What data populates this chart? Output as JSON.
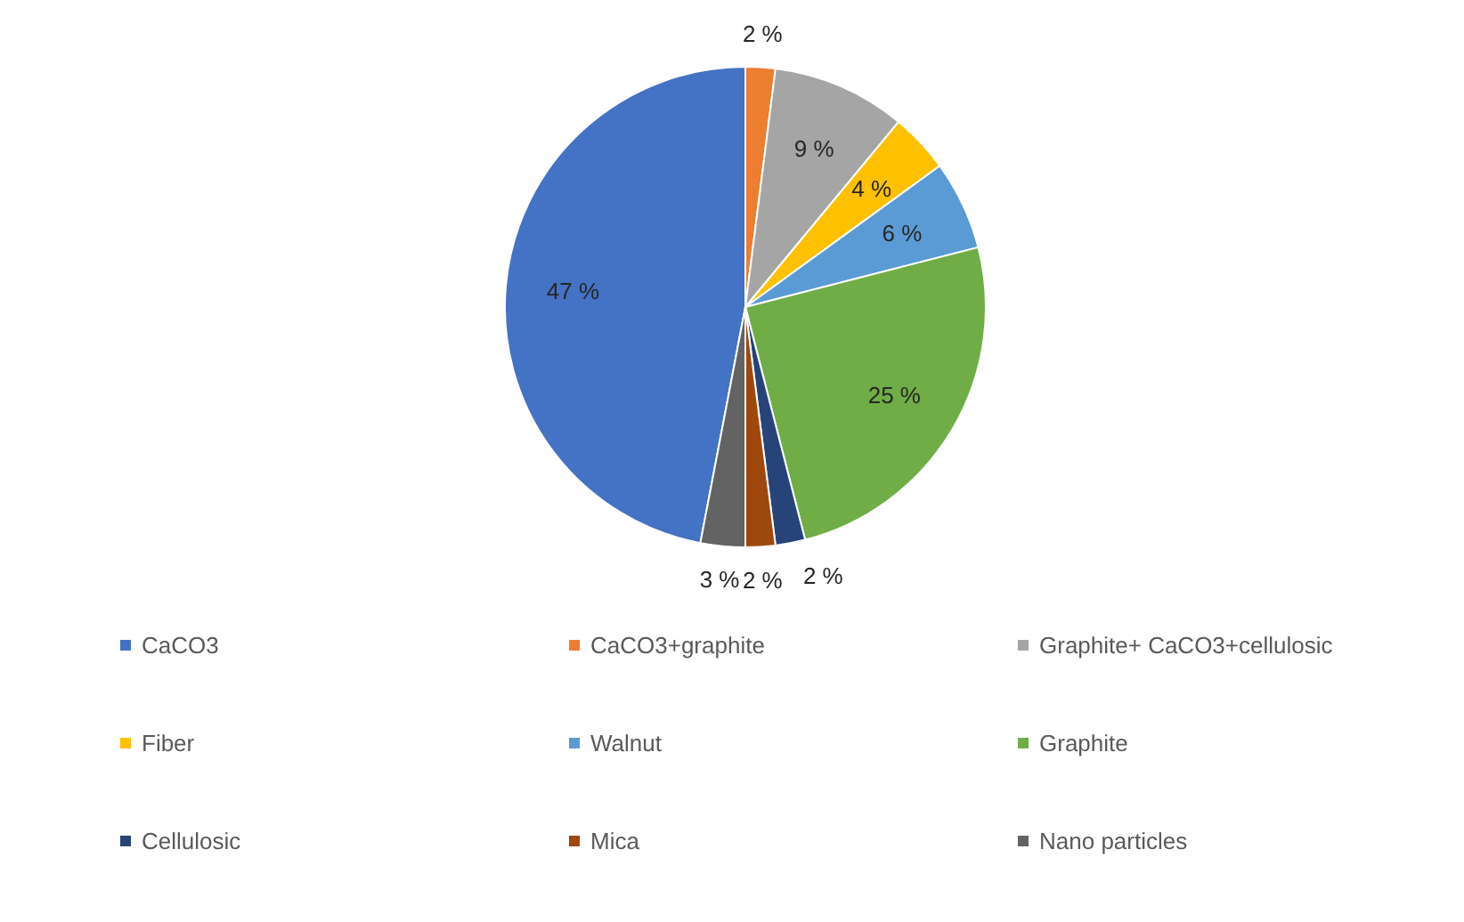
{
  "chart_data": {
    "type": "pie",
    "categories": [
      "CaCO3",
      "CaCO3+graphite",
      "Graphite+ CaCO3+cellulosic",
      "Fiber",
      "Walnut",
      "Graphite",
      "Cellulosic",
      "Mica",
      "Nano particles"
    ],
    "values": [
      47,
      2,
      9,
      4,
      6,
      25,
      2,
      2,
      3
    ],
    "colors": [
      "#4472c4",
      "#ed7d31",
      "#a5a5a5",
      "#ffc000",
      "#5b9bd5",
      "#70ad47",
      "#264478",
      "#9e480e",
      "#636363"
    ],
    "value_labels": [
      "47 %",
      "2 %",
      "9 %",
      "4 %",
      "6 %",
      "25 %",
      "2 %",
      "2 %",
      "3 %"
    ],
    "legend": "bottom"
  }
}
